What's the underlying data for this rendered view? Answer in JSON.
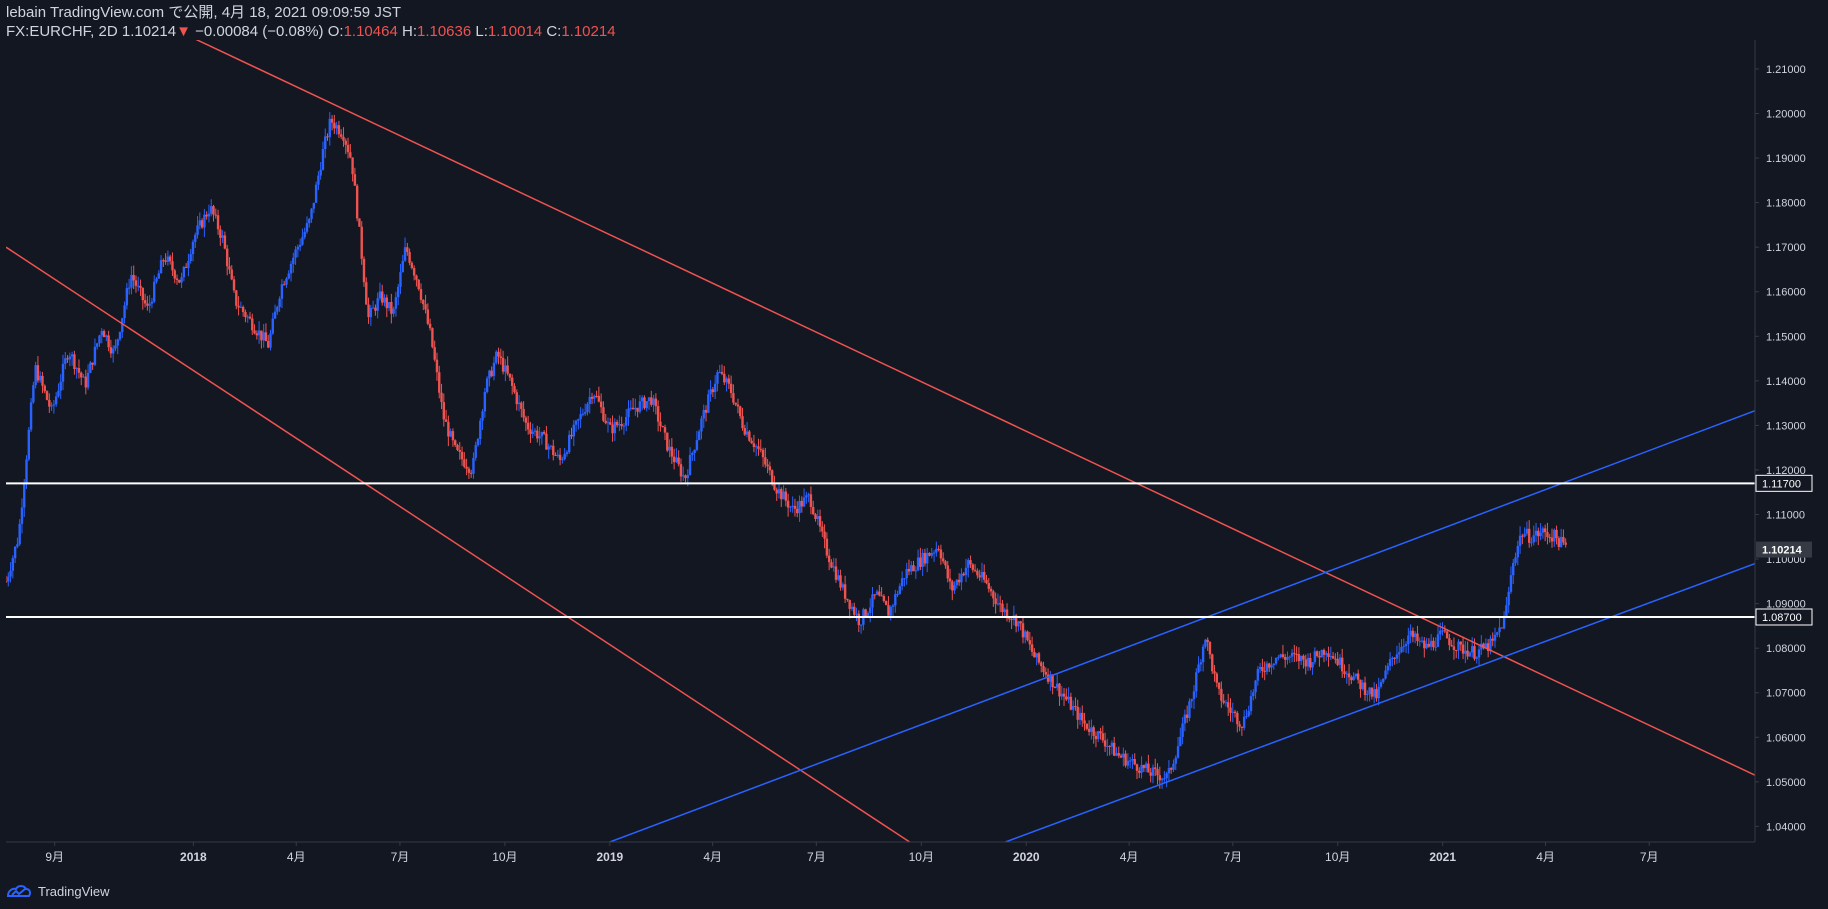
{
  "header": {
    "publisher": "lebain",
    "source": "TradingView.com",
    "published_text": "で公開, 4月 18, 2021 09:09:59 JST",
    "symbol": "FX:EURCHF, 2D",
    "last": "1.10214",
    "change_arrow": "▼",
    "change": "−0.00084 (−0.08%)",
    "o_label": "O:",
    "o_value": "1.10464",
    "h_label": "H:",
    "h_value": "1.10636",
    "l_label": "L:",
    "l_value": "1.10014",
    "c_label": "C:",
    "c_value": "1.10214"
  },
  "footer": {
    "brand": "TradingView"
  },
  "colors": {
    "background": "#131722",
    "up": "#2962ff",
    "down": "#ef5350",
    "text": "#d1d4dc",
    "axis_line": "#363a45"
  },
  "chart_data": {
    "type": "candlestick",
    "title": "",
    "xlabel": "",
    "ylabel": "",
    "grid": false,
    "ylim": [
      1.0365,
      1.2165
    ],
    "xlim": [
      2017.55,
      2021.75
    ],
    "y_ticks": [
      "1.04000",
      "1.05000",
      "1.06000",
      "1.07000",
      "1.08000",
      "1.09000",
      "1.10000",
      "1.11000",
      "1.12000",
      "1.13000",
      "1.14000",
      "1.15000",
      "1.16000",
      "1.17000",
      "1.18000",
      "1.19000",
      "1.20000",
      "1.21000"
    ],
    "x_ticks": [
      {
        "label": "9月",
        "x": 2017.667
      },
      {
        "label": "2018",
        "x": 2018.0
      },
      {
        "label": "4月",
        "x": 2018.247
      },
      {
        "label": "7月",
        "x": 2018.496
      },
      {
        "label": "10月",
        "x": 2018.748
      },
      {
        "label": "2019",
        "x": 2019.0
      },
      {
        "label": "4月",
        "x": 2019.247
      },
      {
        "label": "7月",
        "x": 2019.496
      },
      {
        "label": "10月",
        "x": 2019.748
      },
      {
        "label": "2020",
        "x": 2020.0
      },
      {
        "label": "4月",
        "x": 2020.247
      },
      {
        "label": "7月",
        "x": 2020.496
      },
      {
        "label": "10月",
        "x": 2020.748
      },
      {
        "label": "2021",
        "x": 2021.0
      },
      {
        "label": "4月",
        "x": 2021.247
      },
      {
        "label": "7月",
        "x": 2021.496
      }
    ],
    "horizontal_levels": [
      {
        "label": "1.11700",
        "y": 1.117,
        "color": "#ffffff"
      },
      {
        "label": "1.08700",
        "y": 1.087,
        "color": "#ffffff"
      }
    ],
    "last_price": {
      "label": "1.10214",
      "y": 1.10214
    },
    "trend_lines": [
      {
        "name": "",
        "color": "#ef5350",
        "x1": 2017.93,
        "y1": 1.22,
        "x2": 2021.75,
        "y2": 1.0515
      },
      {
        "name": "",
        "color": "#ef5350",
        "x1": 2017.55,
        "y1": 1.17,
        "x2": 2019.72,
        "y2": 1.0365
      },
      {
        "name": "",
        "color": "#2962ff",
        "x1": 2019.0,
        "y1": 1.0365,
        "x2": 2021.75,
        "y2": 1.1333
      },
      {
        "name": "",
        "color": "#2962ff",
        "x1": 2019.95,
        "y1": 1.0365,
        "x2": 2021.75,
        "y2": 1.099
      }
    ],
    "price_path": [
      [
        2017.55,
        1.095
      ],
      [
        2017.58,
        1.105
      ],
      [
        2017.62,
        1.143
      ],
      [
        2017.66,
        1.133
      ],
      [
        2017.7,
        1.147
      ],
      [
        2017.74,
        1.139
      ],
      [
        2017.78,
        1.152
      ],
      [
        2017.81,
        1.146
      ],
      [
        2017.85,
        1.164
      ],
      [
        2017.89,
        1.156
      ],
      [
        2017.93,
        1.168
      ],
      [
        2017.97,
        1.162
      ],
      [
        2018.0,
        1.172
      ],
      [
        2018.04,
        1.179
      ],
      [
        2018.07,
        1.172
      ],
      [
        2018.1,
        1.158
      ],
      [
        2018.14,
        1.153
      ],
      [
        2018.18,
        1.148
      ],
      [
        2018.21,
        1.161
      ],
      [
        2018.25,
        1.17
      ],
      [
        2018.28,
        1.176
      ],
      [
        2018.31,
        1.191
      ],
      [
        2018.33,
        1.1985
      ],
      [
        2018.36,
        1.1955
      ],
      [
        2018.38,
        1.1895
      ],
      [
        2018.4,
        1.172
      ],
      [
        2018.42,
        1.154
      ],
      [
        2018.45,
        1.159
      ],
      [
        2018.48,
        1.155
      ],
      [
        2018.51,
        1.17
      ],
      [
        2018.54,
        1.162
      ],
      [
        2018.57,
        1.15
      ],
      [
        2018.6,
        1.132
      ],
      [
        2018.63,
        1.124
      ],
      [
        2018.67,
        1.12
      ],
      [
        2018.7,
        1.138
      ],
      [
        2018.73,
        1.146
      ],
      [
        2018.76,
        1.14
      ],
      [
        2018.8,
        1.13
      ],
      [
        2018.84,
        1.127
      ],
      [
        2018.88,
        1.122
      ],
      [
        2018.92,
        1.13
      ],
      [
        2018.96,
        1.138
      ],
      [
        2019.0,
        1.129
      ],
      [
        2019.03,
        1.131
      ],
      [
        2019.06,
        1.134
      ],
      [
        2019.1,
        1.136
      ],
      [
        2019.14,
        1.125
      ],
      [
        2019.18,
        1.118
      ],
      [
        2019.22,
        1.131
      ],
      [
        2019.26,
        1.142
      ],
      [
        2019.29,
        1.138
      ],
      [
        2019.32,
        1.13
      ],
      [
        2019.36,
        1.124
      ],
      [
        2019.4,
        1.116
      ],
      [
        2019.44,
        1.111
      ],
      [
        2019.48,
        1.114
      ],
      [
        2019.52,
        1.102
      ],
      [
        2019.56,
        1.093
      ],
      [
        2019.6,
        1.086
      ],
      [
        2019.64,
        1.092
      ],
      [
        2019.67,
        1.088
      ],
      [
        2019.71,
        1.097
      ],
      [
        2019.75,
        1.1
      ],
      [
        2019.79,
        1.103
      ],
      [
        2019.82,
        1.093
      ],
      [
        2019.86,
        1.099
      ],
      [
        2019.9,
        1.095
      ],
      [
        2019.94,
        1.089
      ],
      [
        2019.98,
        1.086
      ],
      [
        2020.02,
        1.078
      ],
      [
        2020.06,
        1.073
      ],
      [
        2020.1,
        1.068
      ],
      [
        2020.14,
        1.063
      ],
      [
        2020.18,
        1.06
      ],
      [
        2020.22,
        1.056
      ],
      [
        2020.26,
        1.054
      ],
      [
        2020.3,
        1.052
      ],
      [
        2020.34,
        1.051
      ],
      [
        2020.37,
        1.06
      ],
      [
        2020.4,
        1.07
      ],
      [
        2020.43,
        1.083
      ],
      [
        2020.46,
        1.07
      ],
      [
        2020.49,
        1.066
      ],
      [
        2020.52,
        1.063
      ],
      [
        2020.56,
        1.075
      ],
      [
        2020.6,
        1.078
      ],
      [
        2020.64,
        1.078
      ],
      [
        2020.68,
        1.077
      ],
      [
        2020.72,
        1.08
      ],
      [
        2020.76,
        1.076
      ],
      [
        2020.8,
        1.072
      ],
      [
        2020.84,
        1.069
      ],
      [
        2020.88,
        1.078
      ],
      [
        2020.92,
        1.083
      ],
      [
        2020.96,
        1.08
      ],
      [
        2021.0,
        1.083
      ],
      [
        2021.04,
        1.08
      ],
      [
        2021.08,
        1.079
      ],
      [
        2021.12,
        1.081
      ],
      [
        2021.15,
        1.087
      ],
      [
        2021.17,
        1.1
      ],
      [
        2021.19,
        1.106
      ],
      [
        2021.21,
        1.105
      ],
      [
        2021.24,
        1.106
      ],
      [
        2021.27,
        1.105
      ],
      [
        2021.3,
        1.1021
      ]
    ]
  }
}
